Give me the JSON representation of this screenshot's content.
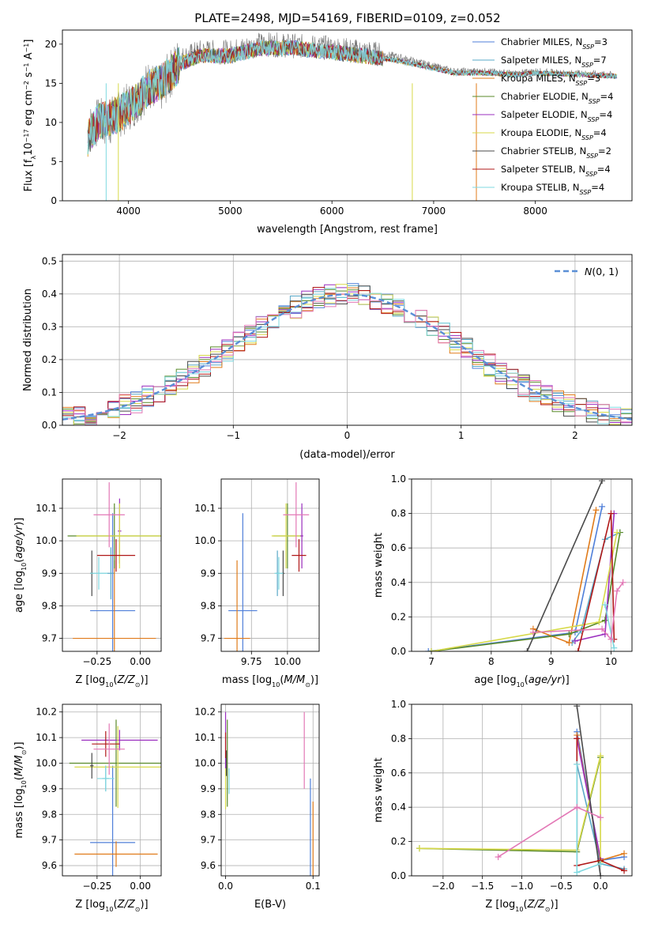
{
  "figure": {
    "title": "PLATE=2498, MJD=54169, FIBERID=0109, z=0.052",
    "colors": {
      "chabrier_miles": "#4f7fd9",
      "salpeter_miles": "#5aa8c7",
      "kroupa_miles": "#e07b1a",
      "chabrier_elodie": "#5a8a2a",
      "salpeter_elodie": "#9b2fbf",
      "kroupa_elodie": "#d7d94a",
      "chabrier_stelib": "#4a4a4a",
      "salpeter_stelib": "#b01818",
      "kroupa_stelib": "#7fd8e0",
      "pink": "#e378b6",
      "gaussian": "#5b8fd6"
    }
  },
  "chart_data": [
    {
      "id": "spectrum",
      "type": "line",
      "title": "PLATE=2498, MJD=54169, FIBERID=0109, z=0.052",
      "xlabel": "wavelength [Angstrom, rest frame]",
      "ylabel": "Flux [f_λ10^-17 erg cm^-2 s^-1 A^-1]",
      "xlim": [
        3350,
        8950
      ],
      "ylim": [
        0,
        21.8
      ],
      "xticks": [
        4000,
        5000,
        6000,
        7000,
        8000
      ],
      "yticks": [
        0,
        5,
        10,
        15,
        20
      ],
      "legend_position": "top-right",
      "legend": [
        "Chabrier MILES, N_SSP=3",
        "Salpeter MILES, N_SSP=7",
        "Kroupa MILES, N_SSP=3",
        "Chabrier ELODIE, N_SSP=4",
        "Salpeter ELODIE, N_SSP=4",
        "Kroupa ELODIE, N_SSP=4",
        "Chabrier STELIB, N_SSP=2",
        "Salpeter STELIB, N_SSP=4",
        "Kroupa STELIB, N_SSP=4"
      ],
      "data_curve_x": [
        3600,
        3700,
        3800,
        3900,
        4000,
        4100,
        4200,
        4300,
        4400,
        4500,
        4700,
        5000,
        5300,
        5600,
        6000,
        6300,
        6600,
        6900,
        7200,
        7500,
        7800,
        8000,
        8200,
        8500,
        8800
      ],
      "data_curve_y": [
        9,
        10,
        10,
        11,
        12,
        13,
        15,
        14,
        16,
        18,
        19,
        19,
        20,
        19.8,
        19.5,
        19,
        18.5,
        17.5,
        16.5,
        16.5,
        16.2,
        16.5,
        16.3,
        16.2,
        16
      ],
      "model_curve_y": [
        8,
        10,
        10.5,
        11,
        12,
        13,
        14.5,
        15,
        16,
        17.5,
        18.5,
        18.5,
        19.5,
        19.5,
        19,
        18.5,
        18,
        17.2,
        16.3,
        16.3,
        16.1,
        16.3,
        16.2,
        16.1,
        15.9
      ]
    },
    {
      "id": "residuals",
      "type": "line",
      "xlabel": "(data-model)/error",
      "ylabel": "Normed distribution",
      "xlim": [
        -2.5,
        2.5
      ],
      "ylim": [
        0,
        0.52
      ],
      "xticks": [
        -2,
        -1,
        0,
        1,
        2
      ],
      "yticks": [
        0.0,
        0.1,
        0.2,
        0.3,
        0.4,
        0.5
      ],
      "legend_position": "top-right",
      "legend": [
        "N(0,1)"
      ],
      "gaussian": {
        "mean": 0,
        "sigma": 1
      }
    },
    {
      "id": "age_vs_Z",
      "type": "scatter",
      "xlabel": "Z [log10(Z/Z_sun)]",
      "ylabel": "age  [log10(age/yr)]",
      "xlim": [
        -0.45,
        0.12
      ],
      "ylim": [
        9.66,
        10.19
      ],
      "xticks": [
        -0.25,
        0.0
      ],
      "yticks": [
        9.7,
        9.8,
        9.9,
        10.0,
        10.1
      ],
      "points": [
        {
          "series": "Chabrier MILES",
          "x": -0.16,
          "y": 9.785,
          "xerr": 0.13,
          "yerr": 0.3
        },
        {
          "series": "Salpeter MILES",
          "x": -0.17,
          "y": 9.9,
          "xerr": 0.02,
          "yerr": 0.08
        },
        {
          "series": "Kroupa MILES",
          "x": -0.15,
          "y": 9.7,
          "xerr": 0.24,
          "yerr": 0.24
        },
        {
          "series": "Chabrier ELODIE",
          "x": -0.15,
          "y": 10.015,
          "xerr": 0.27,
          "yerr": 0.1
        },
        {
          "series": "Salpeter ELODIE",
          "x": -0.12,
          "y": 10.03,
          "xerr": 0.01,
          "yerr": 0.1
        },
        {
          "series": "Kroupa ELODIE",
          "x": -0.12,
          "y": 10.015,
          "xerr": 0.25,
          "yerr": 0.1
        },
        {
          "series": "Chabrier STELIB",
          "x": -0.28,
          "y": 9.9,
          "xerr": 0.01,
          "yerr": 0.07
        },
        {
          "series": "Salpeter STELIB",
          "x": -0.14,
          "y": 9.955,
          "xerr": 0.11,
          "yerr": 0.05
        },
        {
          "series": "Kroupa STELIB",
          "x": -0.24,
          "y": 9.9,
          "xerr": 0.05,
          "yerr": 0.05
        },
        {
          "series": "pink",
          "x": -0.18,
          "y": 10.08,
          "xerr": 0.09,
          "yerr": 0.1
        }
      ]
    },
    {
      "id": "age_vs_mass",
      "type": "scatter",
      "xlabel": "mass [log10(M/M_sun)]",
      "xlim": [
        9.54,
        10.22
      ],
      "ylim": [
        9.66,
        10.19
      ],
      "xticks": [
        9.75,
        10.0
      ],
      "yticks": [
        9.7,
        9.8,
        9.9,
        10.0,
        10.1
      ],
      "points": [
        {
          "series": "Chabrier MILES",
          "x": 9.69,
          "y": 9.785,
          "xerr": 0.1,
          "yerr": 0.3
        },
        {
          "series": "Salpeter MILES",
          "x": 9.93,
          "y": 9.9,
          "xerr": 0.01,
          "yerr": 0.07
        },
        {
          "series": "Kroupa MILES",
          "x": 9.65,
          "y": 9.7,
          "xerr": 0.09,
          "yerr": 0.24
        },
        {
          "series": "Chabrier ELODIE",
          "x": 10.0,
          "y": 10.015,
          "xerr": 0.1,
          "yerr": 0.1
        },
        {
          "series": "Salpeter ELODIE",
          "x": 10.1,
          "y": 10.015,
          "xerr": 0.01,
          "yerr": 0.1
        },
        {
          "series": "Kroupa ELODIE",
          "x": 9.99,
          "y": 10.015,
          "xerr": 0.1,
          "yerr": 0.1
        },
        {
          "series": "Chabrier STELIB",
          "x": 9.97,
          "y": 9.9,
          "xerr": 0.01,
          "yerr": 0.07
        },
        {
          "series": "Salpeter STELIB",
          "x": 10.08,
          "y": 9.955,
          "xerr": 0.05,
          "yerr": 0.05
        },
        {
          "series": "Kroupa STELIB",
          "x": 9.94,
          "y": 9.9,
          "xerr": 0.03,
          "yerr": 0.05
        },
        {
          "series": "pink",
          "x": 10.06,
          "y": 10.08,
          "xerr": 0.09,
          "yerr": 0.1
        }
      ]
    },
    {
      "id": "mass_weight_vs_age",
      "type": "line",
      "xlabel": "age  [log10(age/yr)]",
      "ylabel": "mass weight",
      "xlim": [
        6.67,
        10.35
      ],
      "ylim": [
        0,
        1.0
      ],
      "xticks": [
        7,
        8,
        9,
        10
      ],
      "yticks": [
        0.0,
        0.2,
        0.4,
        0.6,
        0.8,
        1.0
      ],
      "series": [
        {
          "name": "Chabrier MILES",
          "x": [
            6.95,
            9.4,
            9.85
          ],
          "y": [
            0.0,
            0.11,
            0.84
          ]
        },
        {
          "name": "Salpeter MILES",
          "x": [
            9.35,
            9.5,
            9.9,
            10.15
          ],
          "y": [
            0.05,
            0.12,
            0.65,
            0.69
          ]
        },
        {
          "name": "Kroupa MILES",
          "x": [
            8.7,
            9.3,
            9.75
          ],
          "y": [
            0.13,
            0.05,
            0.82
          ]
        },
        {
          "name": "Chabrier ELODIE",
          "x": [
            7.0,
            9.3,
            9.9,
            10.15
          ],
          "y": [
            0.0,
            0.1,
            0.18,
            0.69
          ]
        },
        {
          "name": "Salpeter ELODIE",
          "x": [
            9.4,
            9.9,
            10.05
          ],
          "y": [
            0.06,
            0.1,
            0.8
          ]
        },
        {
          "name": "Kroupa ELODIE",
          "x": [
            7.0,
            9.8,
            10.1
          ],
          "y": [
            0.0,
            0.17,
            0.69
          ]
        },
        {
          "name": "Chabrier STELIB",
          "x": [
            8.6,
            9.85
          ],
          "y": [
            0.0,
            0.99
          ]
        },
        {
          "name": "Salpeter STELIB",
          "x": [
            9.45,
            10.0,
            10.05
          ],
          "y": [
            0.0,
            0.8,
            0.07
          ]
        },
        {
          "name": "Kroupa STELIB",
          "x": [
            9.9,
            10.05
          ],
          "y": [
            0.27,
            0.02
          ]
        },
        {
          "name": "",
          "x": [
            8.7,
            9.85,
            10.0,
            10.1,
            10.2
          ],
          "y": [
            0.11,
            0.13,
            0.07,
            0.35,
            0.4
          ]
        }
      ]
    },
    {
      "id": "mass_vs_Z",
      "type": "scatter",
      "xlabel": "Z [log10(Z/Z_sun)]",
      "ylabel": "mass [log10(M/M_sun)]",
      "xlim": [
        -0.45,
        0.12
      ],
      "ylim": [
        9.56,
        10.23
      ],
      "xticks": [
        -0.25,
        0.0
      ],
      "yticks": [
        9.6,
        9.7,
        9.8,
        9.9,
        10.0,
        10.1,
        10.2
      ],
      "points": [
        {
          "series": "Chabrier MILES",
          "x": -0.16,
          "y": 9.69,
          "xerr": 0.13,
          "yerr": 0.3
        },
        {
          "series": "Salpeter MILES",
          "x": -0.2,
          "y": 9.94,
          "xerr": 0.02,
          "yerr": 0.05
        },
        {
          "series": "Kroupa MILES",
          "x": -0.14,
          "y": 9.645,
          "xerr": 0.24,
          "yerr": 0.05
        },
        {
          "series": "Chabrier ELODIE",
          "x": -0.14,
          "y": 10.0,
          "xerr": 0.27,
          "yerr": 0.17
        },
        {
          "series": "Salpeter ELODIE",
          "x": -0.12,
          "y": 10.09,
          "xerr": 0.22,
          "yerr": 0.04
        },
        {
          "series": "Kroupa ELODIE",
          "x": -0.13,
          "y": 9.985,
          "xerr": 0.25,
          "yerr": 0.16
        },
        {
          "series": "Chabrier STELIB",
          "x": -0.28,
          "y": 9.99,
          "xerr": 0.01,
          "yerr": 0.05
        },
        {
          "series": "Salpeter STELIB",
          "x": -0.2,
          "y": 10.075,
          "xerr": 0.08,
          "yerr": 0.05
        },
        {
          "series": "Kroupa STELIB",
          "x": -0.2,
          "y": 9.94,
          "xerr": 0.05,
          "yerr": 0.05
        },
        {
          "series": "pink",
          "x": -0.18,
          "y": 10.055,
          "xerr": 0.09,
          "yerr": 0.1
        }
      ]
    },
    {
      "id": "mass_vs_EBV",
      "type": "scatter",
      "xlabel": "E(B-V)",
      "xlim": [
        -0.005,
        0.107
      ],
      "ylim": [
        9.56,
        10.23
      ],
      "xticks": [
        0.0,
        0.1
      ],
      "yticks": [
        9.6,
        9.7,
        9.8,
        9.9,
        10.0,
        10.1,
        10.2
      ],
      "points": [
        {
          "series": "Chabrier MILES",
          "x": 0.097,
          "y": 9.69,
          "yerr": 0.25
        },
        {
          "series": "Kroupa MILES",
          "x": 0.1,
          "y": 9.65,
          "yerr": 0.2
        },
        {
          "series": "Chabrier ELODIE",
          "x": 0.002,
          "y": 10.0,
          "yerr": 0.17
        },
        {
          "series": "Salpeter ELODIE",
          "x": 0.0,
          "y": 10.09,
          "yerr": 0.11
        },
        {
          "series": "Kroupa ELODIE",
          "x": 0.0,
          "y": 9.9,
          "yerr": 0.08
        },
        {
          "series": "Chabrier STELIB",
          "x": 0.001,
          "y": 10.0,
          "yerr": 0.05
        },
        {
          "series": "Salpeter STELIB",
          "x": 0.0,
          "y": 10.07,
          "yerr": 0.05
        },
        {
          "series": "Kroupa STELIB",
          "x": 0.004,
          "y": 9.93,
          "yerr": 0.05
        },
        {
          "series": "pink",
          "x": 0.09,
          "y": 10.05,
          "yerr": 0.15
        }
      ]
    },
    {
      "id": "mass_weight_vs_Z",
      "type": "line",
      "xlabel": "Z [log10(Z/Z_sun)]",
      "ylabel": "mass weight",
      "xlim": [
        -2.4,
        0.4
      ],
      "ylim": [
        0,
        1.0
      ],
      "xticks": [
        -2.0,
        -1.5,
        -1.0,
        -0.5,
        0.0
      ],
      "yticks": [
        0.0,
        0.2,
        0.4,
        0.6,
        0.8,
        1.0
      ],
      "series": [
        {
          "name": "Chabrier MILES",
          "x": [
            -0.3,
            0.0,
            0.3
          ],
          "y": [
            0.84,
            0.09,
            0.11
          ]
        },
        {
          "name": "Salpeter MILES",
          "x": [
            -0.3,
            0.0,
            0.3
          ],
          "y": [
            0.65,
            0.07,
            0.04
          ]
        },
        {
          "name": "Kroupa MILES",
          "x": [
            -0.3,
            0.0,
            0.3
          ],
          "y": [
            0.82,
            0.09,
            0.13
          ]
        },
        {
          "name": "Chabrier ELODIE",
          "x": [
            -2.3,
            -0.3,
            0.0
          ],
          "y": [
            0.16,
            0.14,
            0.69
          ]
        },
        {
          "name": "Salpeter ELODIE",
          "x": [
            -0.3,
            0.0
          ],
          "y": [
            0.8,
            0.1
          ]
        },
        {
          "name": "Kroupa ELODIE",
          "x": [
            -2.3,
            -0.3,
            0.0,
            0.0
          ],
          "y": [
            0.16,
            0.15,
            0.7,
            0.08
          ]
        },
        {
          "name": "Chabrier STELIB",
          "x": [
            -0.3,
            0.0
          ],
          "y": [
            0.99,
            0.0
          ]
        },
        {
          "name": "Salpeter STELIB",
          "x": [
            -0.3,
            -0.3,
            0.0,
            0.3
          ],
          "y": [
            0.8,
            0.06,
            0.09,
            0.03
          ]
        },
        {
          "name": "Kroupa STELIB",
          "x": [
            -0.3,
            -0.3,
            0.0
          ],
          "y": [
            0.65,
            0.02,
            0.07
          ]
        },
        {
          "name": "",
          "x": [
            -1.3,
            -0.3,
            0.0
          ],
          "y": [
            0.11,
            0.4,
            0.34
          ]
        }
      ]
    }
  ]
}
